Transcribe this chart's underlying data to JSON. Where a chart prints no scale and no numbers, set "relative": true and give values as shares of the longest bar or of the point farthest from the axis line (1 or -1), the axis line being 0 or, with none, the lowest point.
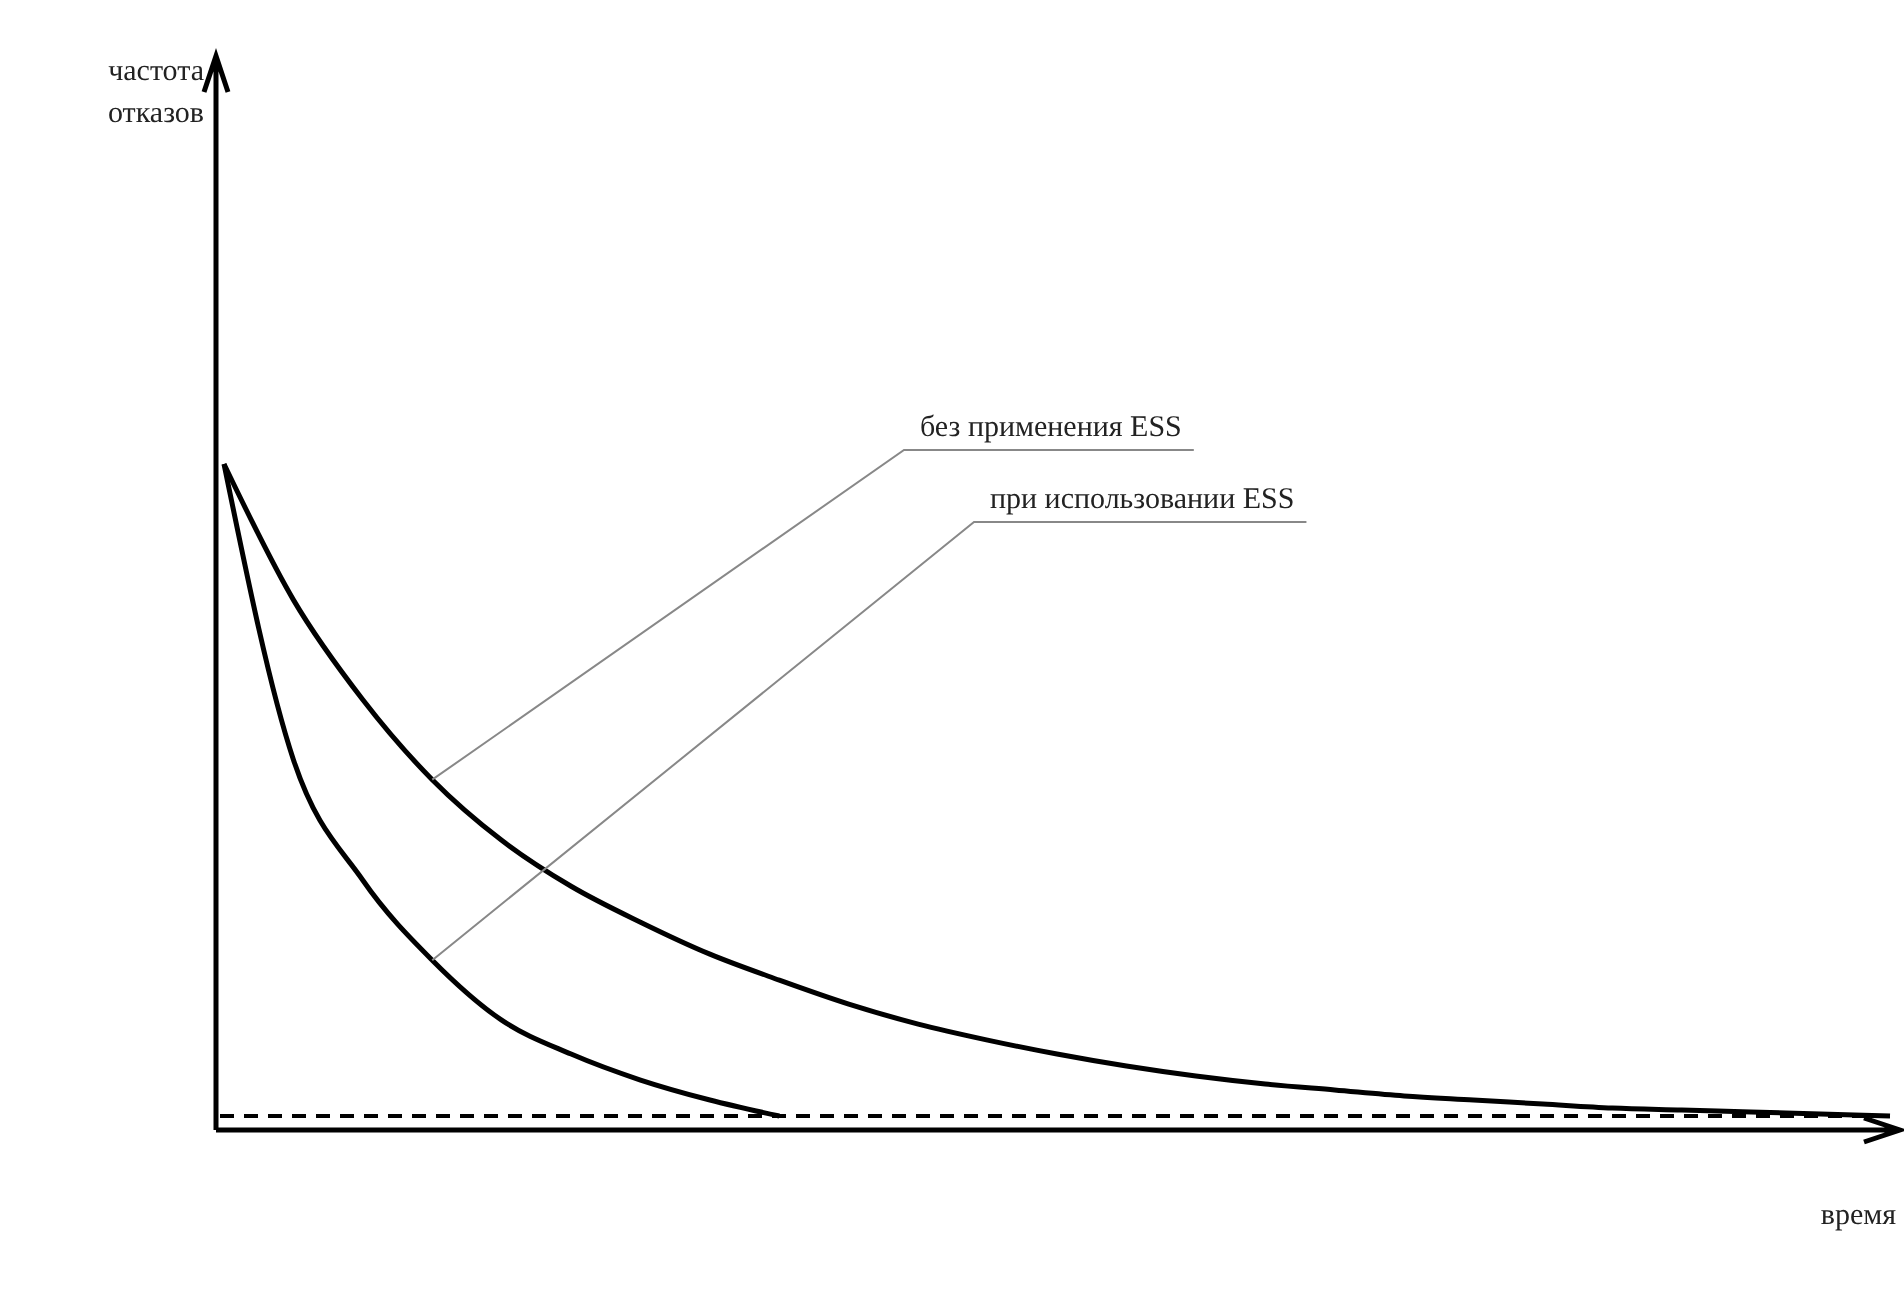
{
  "chart_data": {
    "type": "line",
    "relative": true,
    "xlabel": "время",
    "annotations": [
      "частота отказов"
    ],
    "tick_labels": false,
    "line_style": "solid",
    "categories": [
      null,
      null,
      null,
      null,
      null,
      null,
      null,
      null,
      null,
      null,
      null,
      null,
      null,
      null,
      null,
      null,
      null,
      null,
      null,
      null,
      null,
      null,
      null,
      null,
      null
    ],
    "series": [
      {
        "name": "без применения ESS",
        "color": "#000000",
        "values": [
          1,
          0.796,
          0.646,
          0.526,
          0.435,
          0.366,
          0.312,
          0.264,
          0.225,
          0.189,
          0.159,
          0.135,
          0.114,
          0.096,
          0.081,
          0.069,
          0.06,
          0.051,
          0.045,
          0.039,
          0.033,
          0.03,
          0.027,
          0.024,
          0.021
        ]
      },
      {
        "name": "при использовании ESS",
        "color": "#000000",
        "values": [
          1,
          0.556,
          0.375,
          0.255,
          0.165,
          0.114,
          0.075,
          0.045,
          0.021,
          null,
          null,
          null,
          null,
          null,
          null,
          null,
          null,
          null,
          null,
          null,
          null,
          null,
          null,
          null,
          null
        ]
      }
    ],
    "ref_lines": [
      {
        "axis": "y",
        "value": 0.021,
        "color": "#000000",
        "line_style": "dashed"
      }
    ]
  }
}
